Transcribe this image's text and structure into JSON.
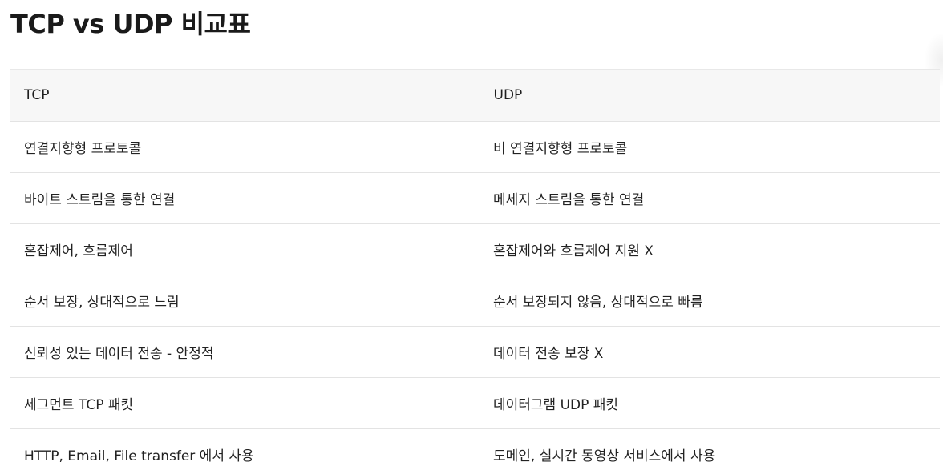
{
  "title": "TCP vs UDP 비교표",
  "table": {
    "headers": [
      "TCP",
      "UDP"
    ],
    "rows": [
      [
        "연결지향형 프로토콜",
        "비 연결지향형 프로토콜"
      ],
      [
        "바이트 스트림을 통한 연결",
        "메세지 스트림을 통한 연결"
      ],
      [
        "혼잡제어, 흐름제어",
        "혼잡제어와 흐름제어 지원 X"
      ],
      [
        "순서 보장, 상대적으로 느림",
        "순서 보장되지 않음, 상대적으로 빠름"
      ],
      [
        "신뢰성 있는 데이터 전송 - 안정적",
        "데이터 전송 보장 X"
      ],
      [
        "세그먼트 TCP 패킷",
        "데이터그램 UDP 패킷"
      ],
      [
        "HTTP, Email, File transfer 에서 사용",
        "도메인, 실시간 동영상 서비스에서 사용"
      ]
    ]
  }
}
